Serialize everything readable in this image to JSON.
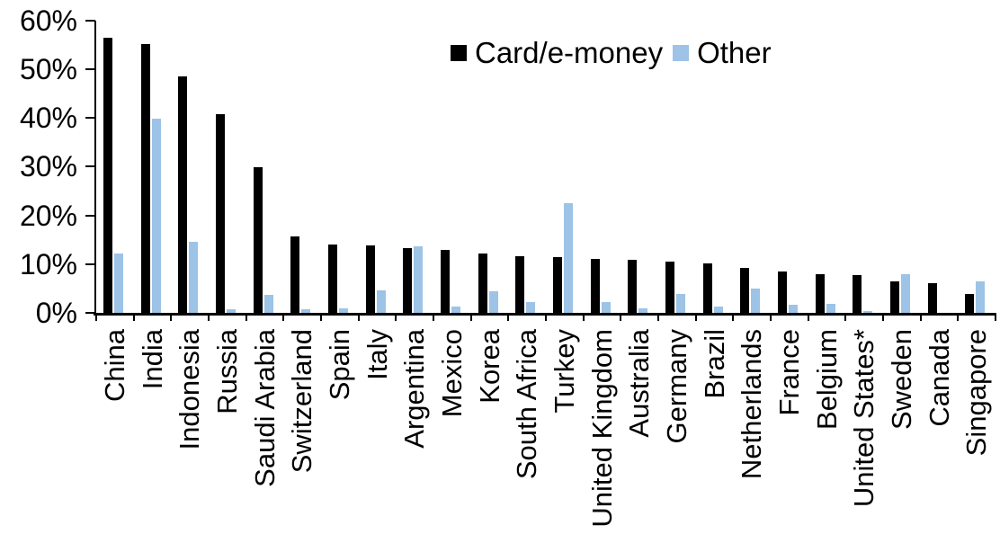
{
  "chart_data": {
    "type": "bar",
    "title": "",
    "xlabel": "",
    "ylabel": "",
    "ylim": [
      0,
      60
    ],
    "y_tick_step": 10,
    "y_tick_labels": [
      "0%",
      "10%",
      "20%",
      "30%",
      "40%",
      "50%",
      "60%"
    ],
    "grid": false,
    "legend_position": "top-center",
    "categories": [
      "China",
      "India",
      "Indonesia",
      "Russia",
      "Saudi Arabia",
      "Switzerland",
      "Spain",
      "Italy",
      "Argentina",
      "Mexico",
      "Korea",
      "South Africa",
      "Turkey",
      "United Kingdom",
      "Australia",
      "Germany",
      "Brazil",
      "Netherlands",
      "France",
      "Belgium",
      "United States*",
      "Sweden",
      "Canada",
      "Singapore"
    ],
    "series": [
      {
        "name": "Card/e-money",
        "color": "#000000",
        "values": [
          56.5,
          55.2,
          48.6,
          40.7,
          29.9,
          15.6,
          14.1,
          13.9,
          13.3,
          12.9,
          12.1,
          11.7,
          11.5,
          11.0,
          10.8,
          10.6,
          10.1,
          9.2,
          8.4,
          7.9,
          7.8,
          6.5,
          6.0,
          3.8
        ]
      },
      {
        "name": "Other",
        "color": "#9DC3E6",
        "values": [
          12.2,
          39.8,
          14.5,
          0.8,
          3.7,
          0.7,
          0.9,
          4.6,
          13.7,
          1.3,
          4.5,
          2.3,
          22.6,
          2.3,
          1.0,
          3.8,
          1.2,
          4.9,
          1.6,
          1.9,
          0.3,
          8.0,
          0.0,
          6.5
        ]
      }
    ]
  }
}
